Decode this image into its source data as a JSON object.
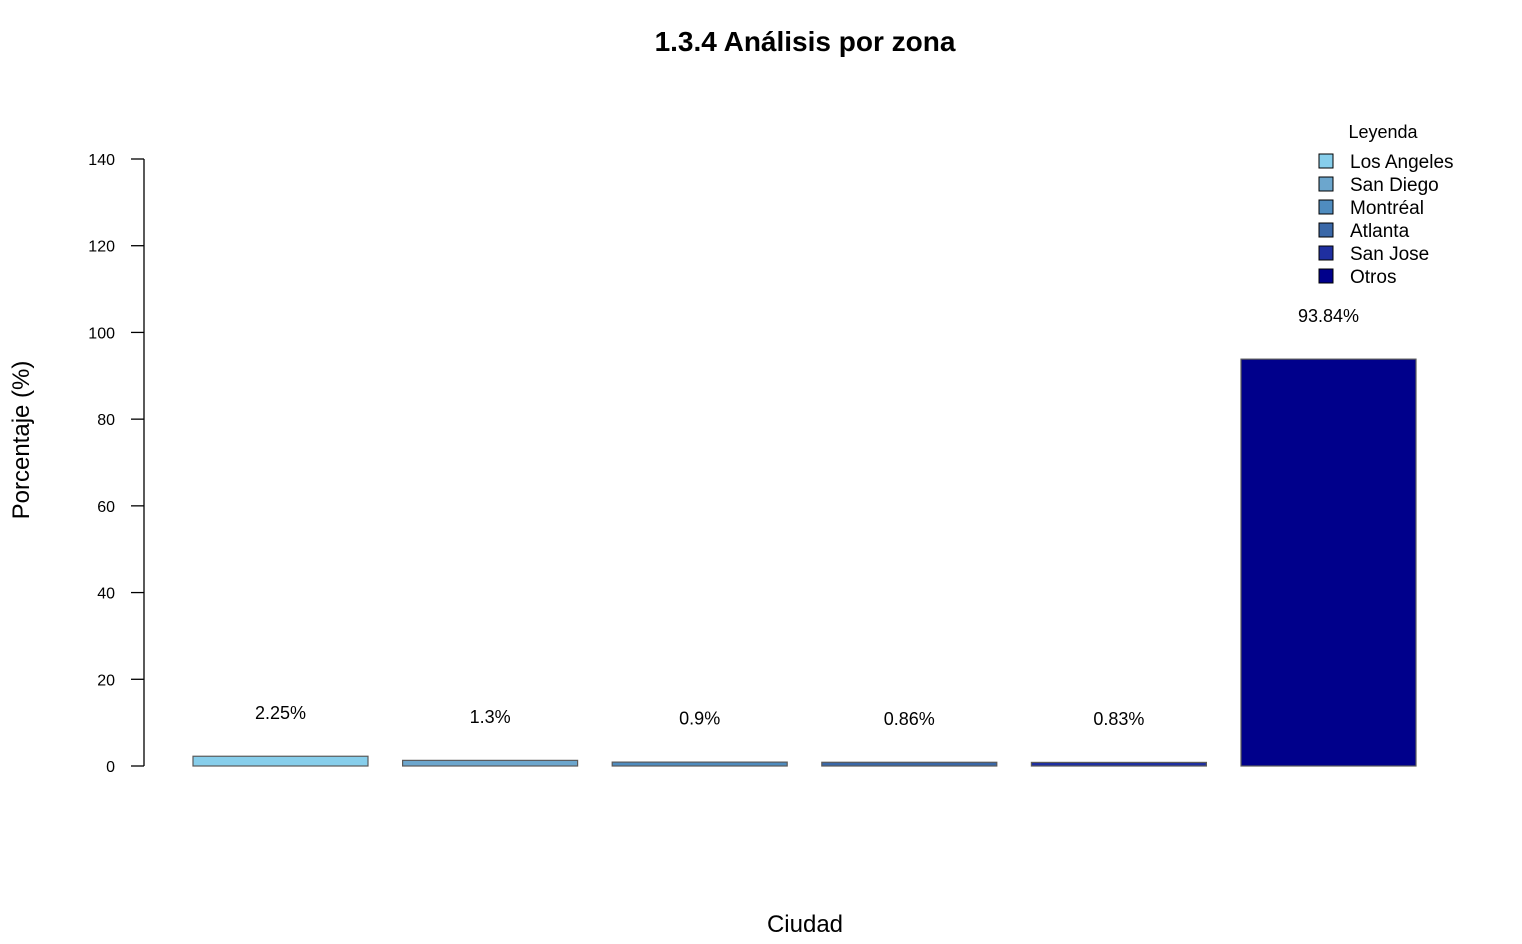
{
  "chart_data": {
    "type": "bar",
    "title": "1.3.4 Análisis por zona",
    "xlabel": "Ciudad",
    "ylabel": "Porcentaje (%)",
    "ylim": [
      0,
      140
    ],
    "yticks": [
      0,
      20,
      40,
      60,
      80,
      100,
      120,
      140
    ],
    "categories": [
      "Los Angeles",
      "San Diego",
      "Montréal",
      "Atlanta",
      "San Jose",
      "Otros"
    ],
    "values": [
      2.25,
      1.3,
      0.9,
      0.86,
      0.83,
      93.84
    ],
    "data_labels": [
      "2.25%",
      "1.3%",
      "0.9%",
      "0.86%",
      "0.83%",
      "93.84%"
    ],
    "colors": [
      "#87CEEB",
      "#6CA6CD",
      "#4F8CBF",
      "#3A68A8",
      "#1F2FA0",
      "#00008B"
    ],
    "bar_border_color": "#5a5a5a",
    "legend": {
      "title": "Leyenda",
      "placement": "top-right",
      "entries": [
        "Los Angeles",
        "San Diego",
        "Montréal",
        "Atlanta",
        "San Jose",
        "Otros"
      ]
    },
    "grid": false
  }
}
